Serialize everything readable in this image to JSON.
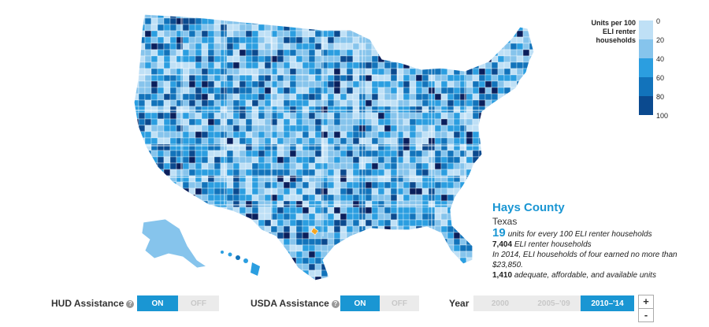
{
  "legend": {
    "title_lines": [
      "Units per 100",
      "ELI renter",
      "households"
    ],
    "ticks": [
      "0",
      "20",
      "40",
      "60",
      "80",
      "100"
    ],
    "colors": [
      "#bfe0f6",
      "#86c4ec",
      "#2b9ee0",
      "#1273bb",
      "#0b4a8f",
      "#0a1f5c"
    ]
  },
  "selected_county": {
    "name": "Hays County",
    "state": "Texas",
    "units_value": "19",
    "units_text": "units for every 100 ELI renter households",
    "households_value": "7,404",
    "households_text": "ELI renter households",
    "income_note": "In 2014, ELI households of four earned no more than $23,850.",
    "adequate_value": "1,410",
    "adequate_text": "adequate, affordable, and available units",
    "highlight_color": "#f5a623"
  },
  "controls": {
    "hud": {
      "label": "HUD Assistance",
      "help": "?",
      "on": "ON",
      "off": "OFF",
      "selected": "ON"
    },
    "usda": {
      "label": "USDA Assistance",
      "help": "?",
      "on": "ON",
      "off": "OFF",
      "selected": "ON"
    },
    "year": {
      "label": "Year",
      "options": [
        "2000",
        "2005–'09",
        "2010–'14"
      ],
      "selected": "2010–'14"
    },
    "zoom": {
      "in": "+",
      "out": "-"
    }
  }
}
